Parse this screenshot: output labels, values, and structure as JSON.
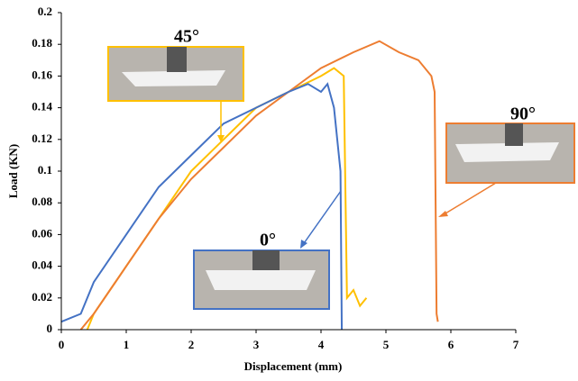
{
  "chart_data": {
    "type": "line",
    "xlabel": "Displacement (mm)",
    "ylabel": "Load (KN)",
    "xlim": [
      0,
      7
    ],
    "xticks": [
      0,
      1,
      2,
      3,
      4,
      5,
      6,
      7
    ],
    "ylim": [
      0,
      0.2
    ],
    "yticks": [
      0,
      0.02,
      0.04,
      0.06,
      0.08,
      0.1,
      0.12,
      0.14,
      0.16,
      0.18,
      0.2
    ],
    "grid": false,
    "series": [
      {
        "name": "0°",
        "color": "#4472c4",
        "x": [
          0,
          0.3,
          0.5,
          1,
          1.5,
          2,
          2.5,
          3,
          3.5,
          3.8,
          4.0,
          4.1,
          4.2,
          4.3,
          4.32
        ],
        "values": [
          0.005,
          0.01,
          0.03,
          0.06,
          0.09,
          0.11,
          0.13,
          0.14,
          0.15,
          0.155,
          0.15,
          0.155,
          0.14,
          0.1,
          0
        ]
      },
      {
        "name": "45°",
        "color": "#ffc000",
        "x": [
          0.4,
          0.5,
          1,
          1.5,
          2,
          2.5,
          3,
          3.5,
          4,
          4.2,
          4.35,
          4.4,
          4.5,
          4.6,
          4.7
        ],
        "values": [
          0,
          0.01,
          0.04,
          0.07,
          0.1,
          0.12,
          0.14,
          0.15,
          0.16,
          0.165,
          0.16,
          0.02,
          0.025,
          0.015,
          0.02
        ]
      },
      {
        "name": "90°",
        "color": "#ed7d31",
        "x": [
          0.3,
          0.5,
          1,
          1.5,
          2,
          2.5,
          3,
          3.5,
          4,
          4.5,
          4.9,
          5.2,
          5.5,
          5.7,
          5.75,
          5.78,
          5.8
        ],
        "values": [
          0,
          0.01,
          0.04,
          0.07,
          0.095,
          0.115,
          0.135,
          0.15,
          0.165,
          0.175,
          0.182,
          0.175,
          0.17,
          0.16,
          0.15,
          0.01,
          0.005
        ]
      }
    ]
  }
}
